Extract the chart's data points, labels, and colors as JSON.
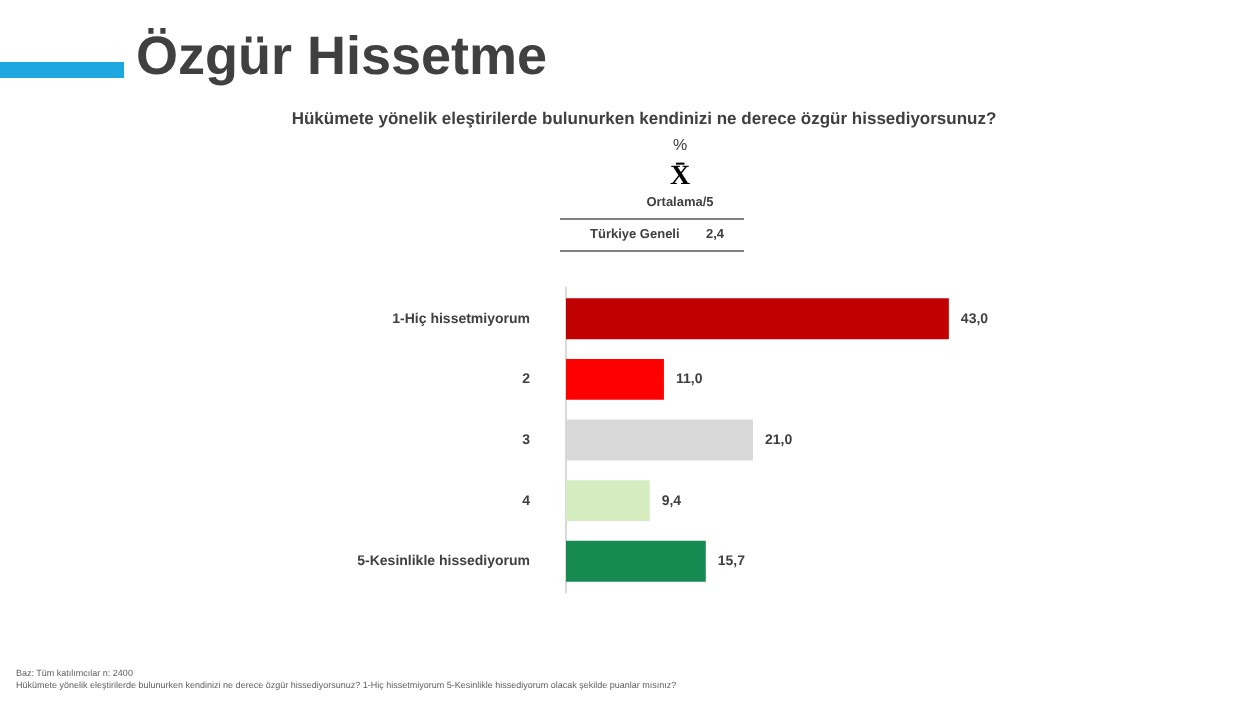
{
  "chart_data": {
    "type": "bar",
    "orientation": "horizontal",
    "title": "Özgür Hissetme",
    "subtitle": "Hükümete yönelik eleştirilerde bulunurken kendinizi ne derece özgür hissediyorsunuz?",
    "categories": [
      "1-Hiç hissetmiyorum",
      "2",
      "3",
      "4",
      "5-Kesinlikle hissediyorum"
    ],
    "values": [
      43.0,
      11.0,
      21.0,
      9.4,
      15.7
    ],
    "value_labels": [
      "43,0",
      "11,0",
      "21,0",
      "9,4",
      "15,7"
    ],
    "colors": [
      "#c00000",
      "#ff0000",
      "#d9d9d9",
      "#d4ecc0",
      "#178a52"
    ],
    "annotations": [
      "%",
      "X̄",
      "Ortalama/5",
      "Türkiye Geneli",
      "2,4",
      "Baz: Tüm katılımcılar n: 2400",
      "Hükümete yönelik eleştirilerde bulunurken kendinizi ne derece özgür hissediyorsunuz? 1-Hiç hissetmiyorum 5-Kesinlikle hissediyorum olacak şekilde puanlar mısınız?"
    ]
  }
}
